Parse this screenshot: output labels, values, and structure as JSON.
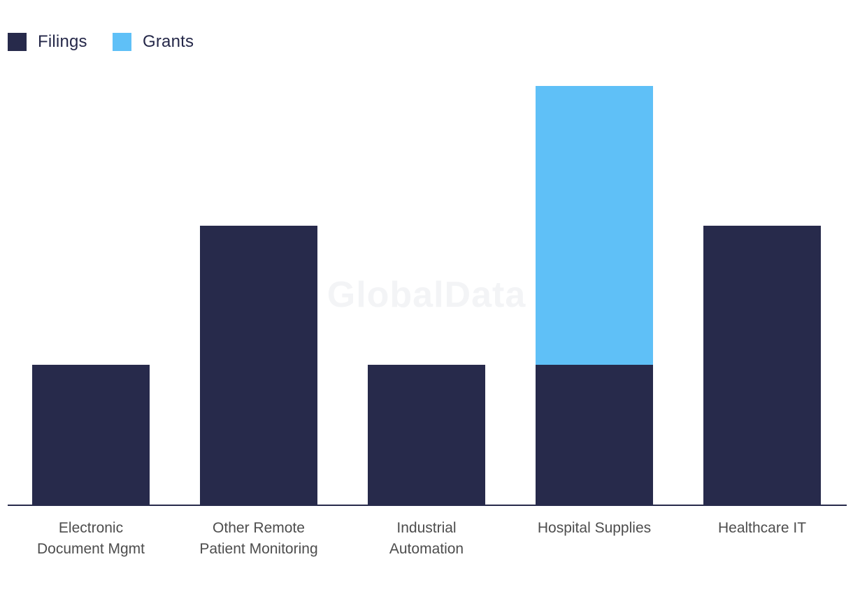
{
  "watermark": {
    "text": "GlobalData"
  },
  "chart_data": {
    "type": "bar",
    "stacked": true,
    "title": "",
    "xlabel": "",
    "ylabel": "",
    "grid": false,
    "y_axis_visible": false,
    "legend_position": "top-left",
    "ylim": [
      0,
      3
    ],
    "value_note": "no y-axis ticks shown; values are relative units read from bar heights",
    "categories": [
      "Electronic Document Mgmt",
      "Other Remote Patient Monitoring",
      "Industrial Automation",
      "Hospital Supplies",
      "Healthcare IT"
    ],
    "label_lines": [
      [
        "Electronic",
        "Document Mgmt"
      ],
      [
        "Other Remote",
        "Patient Monitoring"
      ],
      [
        "Industrial",
        "Automation"
      ],
      [
        "Hospital Supplies"
      ],
      [
        "Healthcare IT"
      ]
    ],
    "series": [
      {
        "name": "Filings",
        "color": "#272a4b",
        "values": [
          1,
          2,
          1,
          1,
          2
        ]
      },
      {
        "name": "Grants",
        "color": "#5fc0f7",
        "values": [
          0,
          0,
          0,
          2,
          0
        ]
      }
    ],
    "axis_line_color": "#272a4b",
    "category_label_color": "#4d4d4d",
    "legend_text_color": "#252849",
    "watermark_color": "#f3f4f6"
  }
}
